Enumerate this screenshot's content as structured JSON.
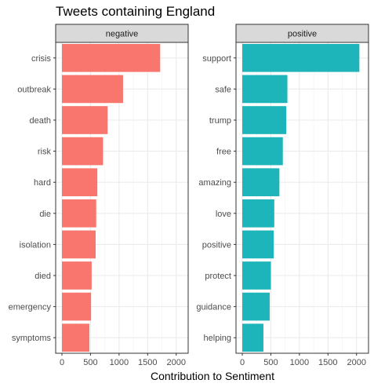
{
  "chart_data": {
    "type": "bar",
    "orientation": "horizontal",
    "title": "Tweets containing England",
    "xlabel": "Contribution to Sentiment",
    "xlim": [
      0,
      2100
    ],
    "x_ticks": [
      "0",
      "500",
      "1000",
      "1500",
      "2000"
    ],
    "grid": true,
    "panels": [
      {
        "name": "negative",
        "color": "#F8766D",
        "categories": [
          "crisis",
          "outbreak",
          "death",
          "risk",
          "hard",
          "die",
          "isolation",
          "died",
          "emergency",
          "symptoms"
        ],
        "values": [
          1720,
          1070,
          800,
          720,
          620,
          600,
          590,
          520,
          510,
          480
        ]
      },
      {
        "name": "positive",
        "color": "#1DB5BA",
        "categories": [
          "support",
          "safe",
          "trump",
          "free",
          "amazing",
          "love",
          "positive",
          "protect",
          "guidance",
          "helping"
        ],
        "values": [
          2050,
          790,
          770,
          710,
          650,
          560,
          550,
          500,
          480,
          370
        ]
      }
    ]
  }
}
